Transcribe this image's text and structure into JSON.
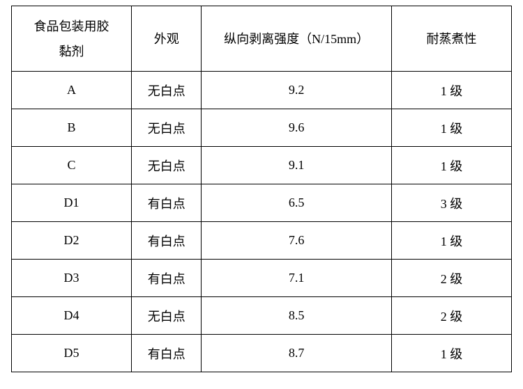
{
  "table": {
    "columns": [
      {
        "label_line1": "食品包装用胶",
        "label_line2": "黏剂"
      },
      {
        "label": "外观"
      },
      {
        "label": "纵向剥离强度（N/15mm）"
      },
      {
        "label": "耐蒸煮性"
      }
    ],
    "rows": [
      {
        "name": "A",
        "appearance": "无白点",
        "strength": "9.2",
        "boil": "1 级"
      },
      {
        "name": "B",
        "appearance": "无白点",
        "strength": "9.6",
        "boil": "1 级"
      },
      {
        "name": "C",
        "appearance": "无白点",
        "strength": "9.1",
        "boil": "1 级"
      },
      {
        "name": "D1",
        "appearance": "有白点",
        "strength": "6.5",
        "boil": "3 级"
      },
      {
        "name": "D2",
        "appearance": "有白点",
        "strength": "7.6",
        "boil": "1 级"
      },
      {
        "name": "D3",
        "appearance": "有白点",
        "strength": "7.1",
        "boil": "2 级"
      },
      {
        "name": "D4",
        "appearance": "无白点",
        "strength": "8.5",
        "boil": "2 级"
      },
      {
        "name": "D5",
        "appearance": "有白点",
        "strength": "8.7",
        "boil": "1 级"
      }
    ],
    "border_color": "#000000",
    "background_color": "#ffffff",
    "text_color": "#000000",
    "font_size_pt": 14,
    "column_widths_pct": [
      24,
      14,
      38,
      24
    ]
  }
}
